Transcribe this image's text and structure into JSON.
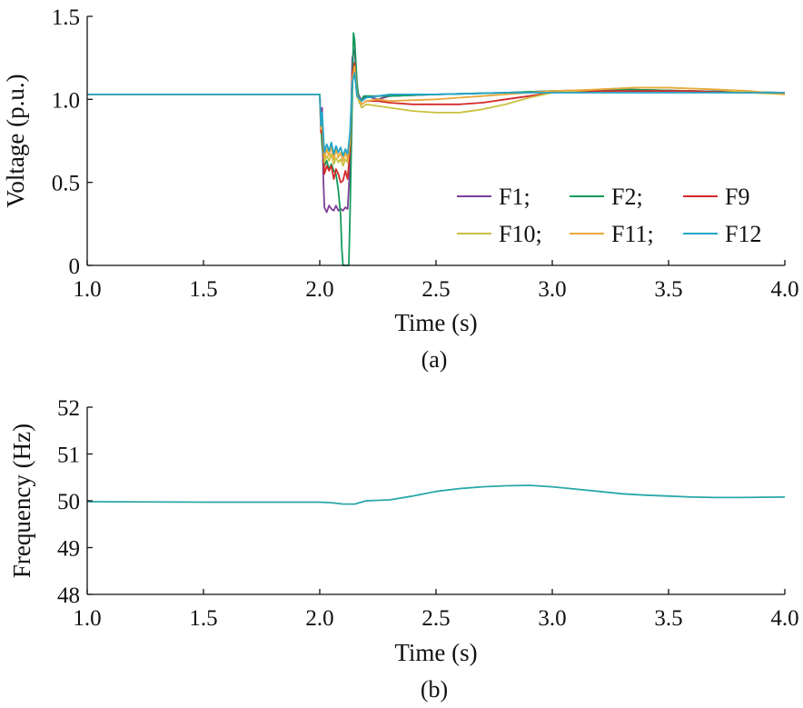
{
  "chart_data": [
    {
      "type": "line",
      "caption": "(a)",
      "xlabel": "Time (s)",
      "ylabel": "Voltage (p.u.)",
      "xlim": [
        1.0,
        4.0
      ],
      "ylim": [
        0,
        1.5
      ],
      "xticks": [
        "1.0",
        "1.5",
        "2.0",
        "2.5",
        "3.0",
        "3.5",
        "4.0"
      ],
      "yticks": [
        "0",
        "0.5",
        "1.0",
        "1.5"
      ],
      "legend": {
        "placement": "lower-right",
        "columns": 3
      },
      "series": [
        {
          "name": "F1;",
          "color": "#7E3F98",
          "points": [
            [
              1.0,
              1.03
            ],
            [
              2.0,
              1.03
            ],
            [
              2.005,
              0.88
            ],
            [
              2.01,
              0.95
            ],
            [
              2.015,
              0.55
            ],
            [
              2.02,
              0.35
            ],
            [
              2.03,
              0.32
            ],
            [
              2.04,
              0.36
            ],
            [
              2.05,
              0.34
            ],
            [
              2.06,
              0.33
            ],
            [
              2.07,
              0.36
            ],
            [
              2.08,
              0.33
            ],
            [
              2.09,
              0.34
            ],
            [
              2.1,
              0.33
            ],
            [
              2.11,
              0.35
            ],
            [
              2.12,
              0.34
            ],
            [
              2.13,
              0.6
            ],
            [
              2.14,
              1.25
            ],
            [
              2.15,
              1.3
            ],
            [
              2.16,
              1.05
            ],
            [
              2.18,
              0.99
            ],
            [
              2.2,
              1.02
            ],
            [
              2.25,
              1.0
            ],
            [
              2.3,
              1.02
            ],
            [
              2.5,
              1.03
            ],
            [
              2.8,
              1.04
            ],
            [
              3.0,
              1.05
            ],
            [
              3.3,
              1.06
            ],
            [
              3.6,
              1.05
            ],
            [
              4.0,
              1.04
            ]
          ]
        },
        {
          "name": "F2;",
          "color": "#159A5C",
          "points": [
            [
              1.0,
              1.03
            ],
            [
              2.0,
              1.03
            ],
            [
              2.005,
              0.85
            ],
            [
              2.01,
              0.72
            ],
            [
              2.02,
              0.6
            ],
            [
              2.03,
              0.63
            ],
            [
              2.04,
              0.58
            ],
            [
              2.05,
              0.61
            ],
            [
              2.06,
              0.57
            ],
            [
              2.07,
              0.55
            ],
            [
              2.08,
              0.45
            ],
            [
              2.09,
              0.3
            ],
            [
              2.095,
              0.1
            ],
            [
              2.1,
              0.0
            ],
            [
              2.125,
              0.0
            ],
            [
              2.13,
              0.3
            ],
            [
              2.14,
              1.0
            ],
            [
              2.145,
              1.4
            ],
            [
              2.15,
              1.36
            ],
            [
              2.16,
              1.1
            ],
            [
              2.17,
              0.98
            ],
            [
              2.19,
              1.02
            ],
            [
              2.22,
              1.02
            ],
            [
              2.3,
              1.02
            ],
            [
              2.5,
              1.03
            ],
            [
              2.8,
              1.04
            ],
            [
              3.0,
              1.05
            ],
            [
              3.3,
              1.06
            ],
            [
              3.6,
              1.05
            ],
            [
              4.0,
              1.04
            ]
          ]
        },
        {
          "name": "F9",
          "color": "#D42A2A",
          "points": [
            [
              1.0,
              1.03
            ],
            [
              2.0,
              1.03
            ],
            [
              2.005,
              0.8
            ],
            [
              2.01,
              0.85
            ],
            [
              2.02,
              0.55
            ],
            [
              2.03,
              0.6
            ],
            [
              2.04,
              0.57
            ],
            [
              2.05,
              0.6
            ],
            [
              2.06,
              0.52
            ],
            [
              2.07,
              0.58
            ],
            [
              2.08,
              0.55
            ],
            [
              2.09,
              0.5
            ],
            [
              2.1,
              0.51
            ],
            [
              2.11,
              0.57
            ],
            [
              2.12,
              0.52
            ],
            [
              2.13,
              0.7
            ],
            [
              2.14,
              1.15
            ],
            [
              2.15,
              1.22
            ],
            [
              2.16,
              1.02
            ],
            [
              2.18,
              0.97
            ],
            [
              2.2,
              0.99
            ],
            [
              2.25,
              0.99
            ],
            [
              2.3,
              0.98
            ],
            [
              2.4,
              0.97
            ],
            [
              2.5,
              0.97
            ],
            [
              2.6,
              0.97
            ],
            [
              2.7,
              0.98
            ],
            [
              2.8,
              1.0
            ],
            [
              2.9,
              1.02
            ],
            [
              3.0,
              1.04
            ],
            [
              3.2,
              1.05
            ],
            [
              3.4,
              1.05
            ],
            [
              3.6,
              1.05
            ],
            [
              3.8,
              1.04
            ],
            [
              4.0,
              1.04
            ]
          ]
        },
        {
          "name": "F10;",
          "color": "#C9C140",
          "points": [
            [
              1.0,
              1.03
            ],
            [
              2.0,
              1.03
            ],
            [
              2.005,
              0.83
            ],
            [
              2.01,
              0.88
            ],
            [
              2.02,
              0.62
            ],
            [
              2.03,
              0.66
            ],
            [
              2.04,
              0.63
            ],
            [
              2.05,
              0.67
            ],
            [
              2.06,
              0.61
            ],
            [
              2.07,
              0.65
            ],
            [
              2.08,
              0.62
            ],
            [
              2.09,
              0.64
            ],
            [
              2.1,
              0.6
            ],
            [
              2.11,
              0.64
            ],
            [
              2.12,
              0.62
            ],
            [
              2.13,
              0.75
            ],
            [
              2.14,
              1.1
            ],
            [
              2.15,
              1.18
            ],
            [
              2.16,
              1.02
            ],
            [
              2.18,
              0.95
            ],
            [
              2.2,
              0.97
            ],
            [
              2.25,
              0.96
            ],
            [
              2.3,
              0.95
            ],
            [
              2.4,
              0.93
            ],
            [
              2.5,
              0.92
            ],
            [
              2.6,
              0.92
            ],
            [
              2.7,
              0.94
            ],
            [
              2.8,
              0.97
            ],
            [
              2.9,
              1.01
            ],
            [
              3.0,
              1.04
            ],
            [
              3.2,
              1.06
            ],
            [
              3.35,
              1.07
            ],
            [
              3.5,
              1.07
            ],
            [
              3.7,
              1.06
            ],
            [
              3.85,
              1.04
            ],
            [
              4.0,
              1.03
            ]
          ]
        },
        {
          "name": "F11;",
          "color": "#E9A93C",
          "points": [
            [
              1.0,
              1.03
            ],
            [
              2.0,
              1.03
            ],
            [
              2.005,
              0.82
            ],
            [
              2.01,
              0.9
            ],
            [
              2.02,
              0.65
            ],
            [
              2.03,
              0.7
            ],
            [
              2.04,
              0.66
            ],
            [
              2.05,
              0.72
            ],
            [
              2.06,
              0.64
            ],
            [
              2.07,
              0.7
            ],
            [
              2.08,
              0.65
            ],
            [
              2.09,
              0.68
            ],
            [
              2.1,
              0.63
            ],
            [
              2.11,
              0.68
            ],
            [
              2.12,
              0.64
            ],
            [
              2.13,
              0.78
            ],
            [
              2.14,
              1.12
            ],
            [
              2.15,
              1.2
            ],
            [
              2.16,
              1.03
            ],
            [
              2.18,
              0.97
            ],
            [
              2.2,
              0.99
            ],
            [
              2.25,
              1.0
            ],
            [
              2.3,
              0.99
            ],
            [
              2.5,
              1.0
            ],
            [
              2.7,
              1.02
            ],
            [
              2.9,
              1.04
            ],
            [
              3.0,
              1.05
            ],
            [
              3.2,
              1.06
            ],
            [
              3.35,
              1.07
            ],
            [
              3.5,
              1.07
            ],
            [
              3.7,
              1.06
            ],
            [
              3.85,
              1.05
            ],
            [
              4.0,
              1.03
            ]
          ]
        },
        {
          "name": "F12",
          "color": "#24A5C9",
          "points": [
            [
              1.0,
              1.03
            ],
            [
              2.0,
              1.03
            ],
            [
              2.005,
              0.84
            ],
            [
              2.01,
              0.92
            ],
            [
              2.02,
              0.68
            ],
            [
              2.03,
              0.73
            ],
            [
              2.04,
              0.69
            ],
            [
              2.05,
              0.74
            ],
            [
              2.06,
              0.67
            ],
            [
              2.07,
              0.72
            ],
            [
              2.08,
              0.68
            ],
            [
              2.09,
              0.71
            ],
            [
              2.1,
              0.66
            ],
            [
              2.11,
              0.7
            ],
            [
              2.12,
              0.67
            ],
            [
              2.13,
              0.8
            ],
            [
              2.14,
              1.1
            ],
            [
              2.15,
              1.16
            ],
            [
              2.16,
              1.02
            ],
            [
              2.18,
              0.99
            ],
            [
              2.2,
              1.01
            ],
            [
              2.25,
              1.02
            ],
            [
              2.3,
              1.03
            ],
            [
              2.5,
              1.03
            ],
            [
              2.8,
              1.04
            ],
            [
              3.0,
              1.04
            ],
            [
              3.3,
              1.04
            ],
            [
              3.6,
              1.04
            ],
            [
              4.0,
              1.04
            ]
          ]
        }
      ]
    },
    {
      "type": "line",
      "caption": "(b)",
      "xlabel": "Time (s)",
      "ylabel": "Frequency (Hz)",
      "xlim": [
        1.0,
        4.0
      ],
      "ylim": [
        48,
        52
      ],
      "xticks": [
        "1.0",
        "1.5",
        "2.0",
        "2.5",
        "3.0",
        "3.5",
        "4.0"
      ],
      "yticks": [
        "48",
        "49",
        "50",
        "51",
        "52"
      ],
      "series": [
        {
          "color": "#2AA8A8",
          "points": [
            [
              1.0,
              49.98
            ],
            [
              1.5,
              49.97
            ],
            [
              2.0,
              49.97
            ],
            [
              2.05,
              49.96
            ],
            [
              2.1,
              49.93
            ],
            [
              2.15,
              49.93
            ],
            [
              2.2,
              50.0
            ],
            [
              2.3,
              50.02
            ],
            [
              2.4,
              50.1
            ],
            [
              2.5,
              50.2
            ],
            [
              2.6,
              50.26
            ],
            [
              2.7,
              50.3
            ],
            [
              2.8,
              50.32
            ],
            [
              2.9,
              50.33
            ],
            [
              3.0,
              50.3
            ],
            [
              3.1,
              50.25
            ],
            [
              3.2,
              50.2
            ],
            [
              3.3,
              50.15
            ],
            [
              3.4,
              50.12
            ],
            [
              3.5,
              50.1
            ],
            [
              3.6,
              50.08
            ],
            [
              3.7,
              50.07
            ],
            [
              3.8,
              50.07
            ],
            [
              4.0,
              50.08
            ]
          ]
        }
      ]
    }
  ]
}
